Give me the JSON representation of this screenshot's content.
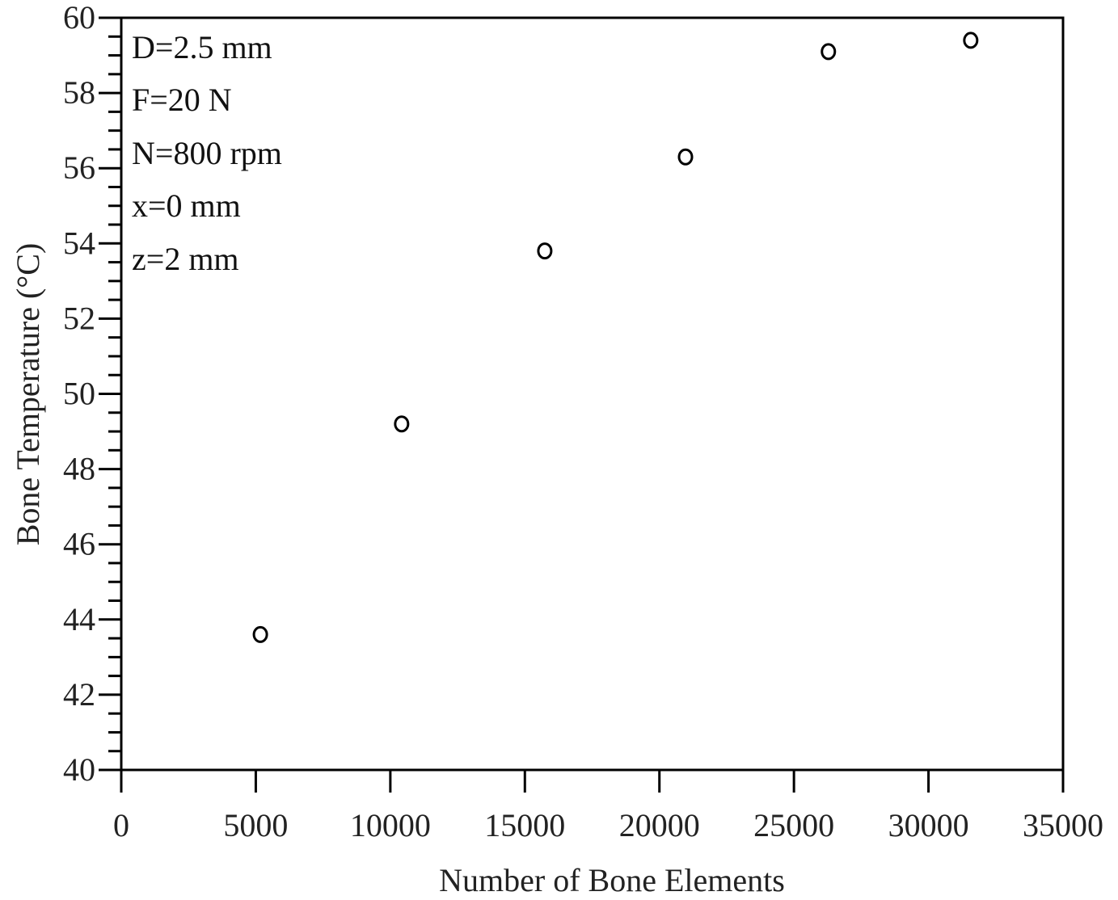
{
  "chart_data": {
    "type": "scatter",
    "title": "",
    "xlabel": "Number of Bone Elements",
    "ylabel": "Bone Temperature (°C)",
    "xlim": [
      0,
      35000
    ],
    "ylim": [
      40,
      60
    ],
    "x_ticks": [
      0,
      5000,
      10000,
      15000,
      20000,
      25000,
      30000,
      35000
    ],
    "x_tick_labels": [
      "0",
      "5000",
      "10000",
      "15000",
      "20000",
      "25000",
      "30000",
      "35000"
    ],
    "y_ticks": [
      40,
      42,
      44,
      46,
      48,
      50,
      52,
      54,
      56,
      58,
      60
    ],
    "y_tick_labels": [
      "40",
      "42",
      "44",
      "46",
      "48",
      "50",
      "52",
      "54",
      "56",
      "58",
      "60"
    ],
    "y_minor_step": 0.5,
    "grid": false,
    "legend": null,
    "marker": "open-circle",
    "series": [
      {
        "name": "Bone Temperature",
        "x": [
          5170,
          10420,
          15740,
          20970,
          26280,
          31570
        ],
        "y": [
          43.6,
          49.2,
          53.8,
          56.3,
          59.1,
          59.4
        ]
      }
    ],
    "annotations": [
      "D=2.5 mm",
      "F=20 N",
      "N=800 rpm",
      "x=0 mm",
      "z=2 mm"
    ]
  },
  "colors": {
    "axis": "#000000",
    "marker": "#000000",
    "text": "#222222",
    "background": "#ffffff"
  }
}
